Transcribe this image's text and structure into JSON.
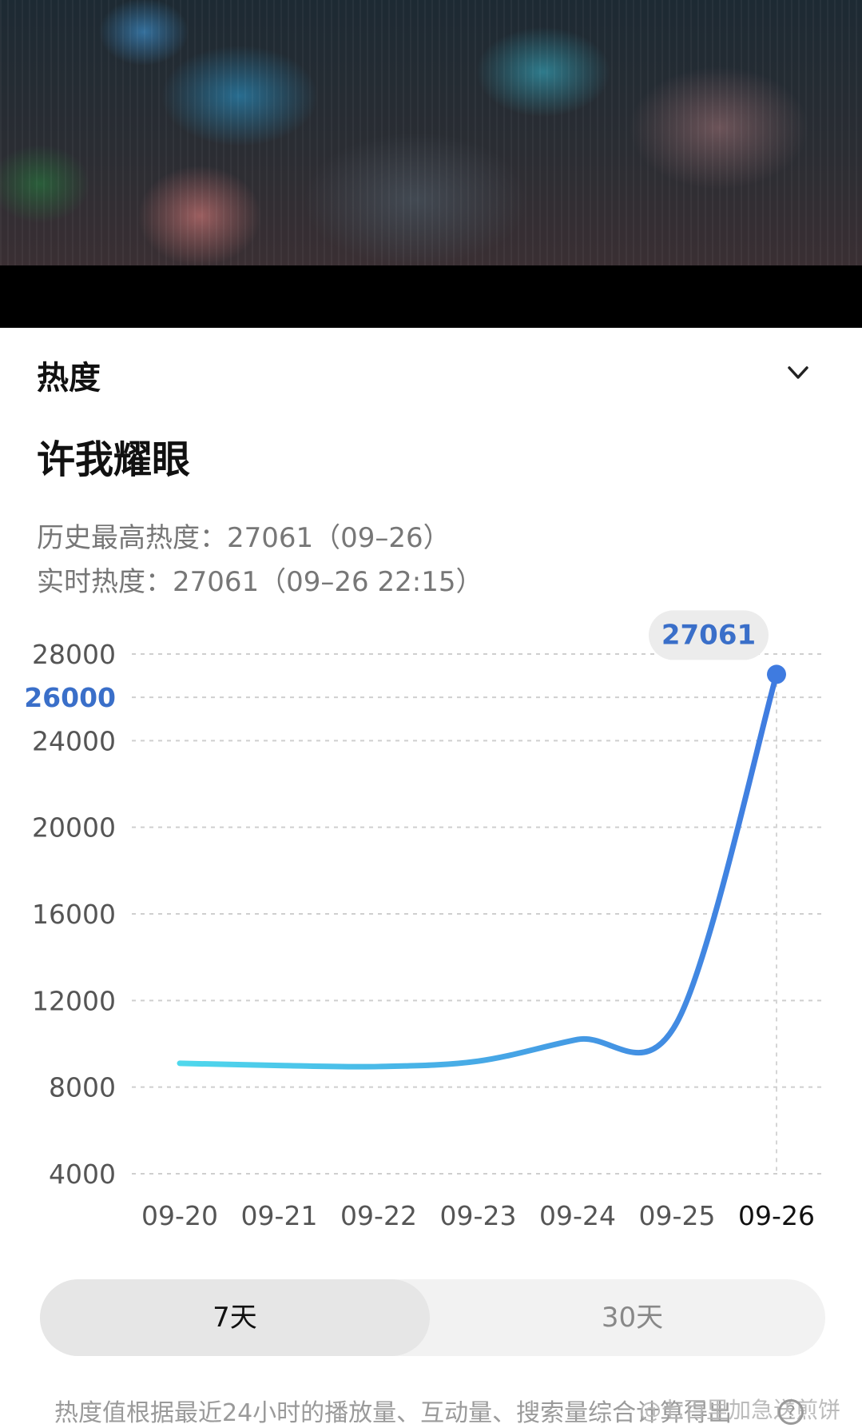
{
  "header": {
    "label": "热度",
    "chevron_icon": "chevron-down-icon"
  },
  "title": "许我耀眼",
  "stats": {
    "max_line": "历史最高热度：27061（09–26）",
    "realtime_line": "实时热度：27061（09–26 22:15）"
  },
  "chart_data": {
    "type": "line",
    "x": [
      "09-20",
      "09-21",
      "09-22",
      "09-23",
      "09-24",
      "09-25",
      "09-26"
    ],
    "y": [
      9100,
      9000,
      8950,
      9200,
      10200,
      11000,
      27061
    ],
    "ylim": [
      4000,
      28000
    ],
    "y_ticks": [
      "28000",
      "26000",
      "24000",
      "20000",
      "16000",
      "12000",
      "8000",
      "4000"
    ],
    "highlight_tick": "26000",
    "peak_label": "27061",
    "grid": true,
    "line_colors": [
      "#4fd8ec",
      "#3f7be0"
    ],
    "highlight_color": "#3a6fc9"
  },
  "tabs": [
    {
      "label": "7天",
      "active": true
    },
    {
      "label": "30天",
      "active": false
    }
  ],
  "footnote": "热度值根据最近24小时的播放量、互动量、搜索量综合计算得出",
  "watermark": "@七百里加急送煎饼"
}
